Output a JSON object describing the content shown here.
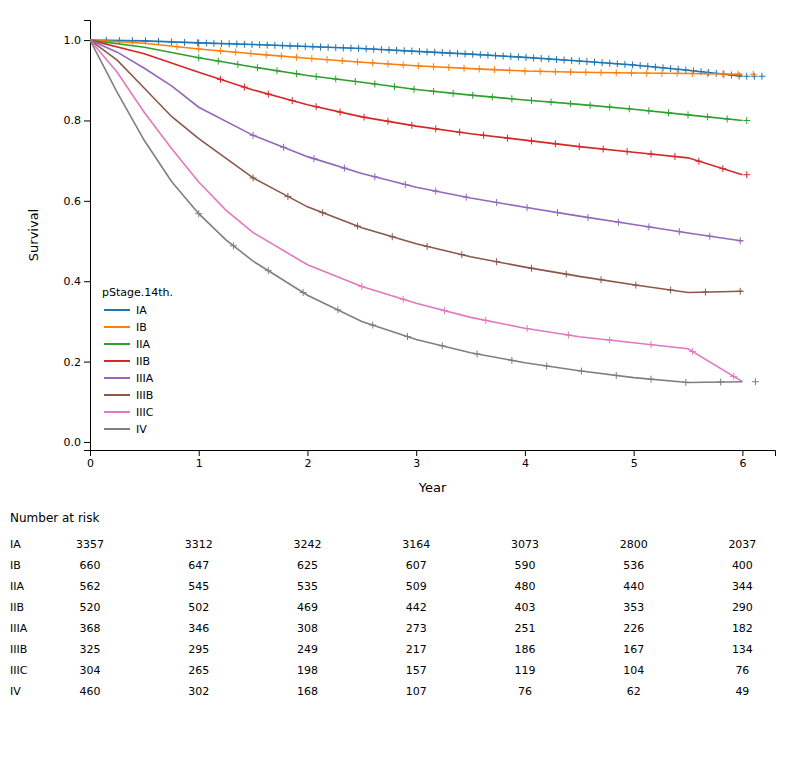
{
  "chart_data": {
    "type": "line",
    "xlabel": "Year",
    "ylabel": "Survival",
    "xlim": [
      0,
      6.3
    ],
    "ylim": [
      -0.02,
      1.05
    ],
    "xticks": [
      0,
      1,
      2,
      3,
      4,
      5,
      6
    ],
    "yticks": [
      {
        "value": 0.0,
        "label": "0.0"
      },
      {
        "value": 0.2,
        "label": "0.2"
      },
      {
        "value": 0.4,
        "label": "0.4"
      },
      {
        "value": 0.6,
        "label": "0.6"
      },
      {
        "value": 0.8,
        "label": "0.8"
      },
      {
        "value": 1.0,
        "label": "1.0"
      }
    ],
    "legend": "lower left",
    "legend_title": "pStage.14th.",
    "series": [
      {
        "name": "IA",
        "marker": "plus",
        "x": [
          0,
          0.5,
          1,
          1.5,
          2,
          2.5,
          3,
          3.5,
          4,
          4.5,
          5,
          5.5,
          6
        ],
        "values": [
          1.0,
          0.998,
          0.993,
          0.989,
          0.984,
          0.979,
          0.972,
          0.965,
          0.957,
          0.948,
          0.938,
          0.925,
          0.91
        ],
        "censored": {
          "x": [
            0.15,
            0.27,
            0.39,
            0.51,
            0.63,
            0.75,
            0.87,
            0.99,
            1.0,
            1.07,
            1.14,
            1.21,
            1.28,
            1.35,
            1.42,
            1.49,
            1.56,
            1.63,
            1.7,
            1.77,
            1.84,
            1.91,
            1.98,
            2.05,
            2.12,
            2.19,
            2.26,
            2.33,
            2.4,
            2.47,
            2.54,
            2.61,
            2.68,
            2.75,
            2.82,
            2.89,
            2.96,
            3.03,
            3.1,
            3.17,
            3.24,
            3.31,
            3.38,
            3.45,
            3.52,
            3.59,
            3.66,
            3.73,
            3.8,
            3.87,
            3.94,
            4.01,
            4.08,
            4.15,
            4.22,
            4.29,
            4.36,
            4.43,
            4.5,
            4.57,
            4.64,
            4.71,
            4.78,
            4.85,
            4.92,
            4.99,
            5.06,
            5.13,
            5.2,
            5.27,
            5.34,
            5.41,
            5.48,
            5.55,
            5.62,
            5.69,
            5.76,
            5.83,
            5.9,
            5.97,
            6.04,
            6.11,
            6.18
          ],
          "values": [
            0.9994,
            0.99892,
            0.99844,
            0.9979,
            0.9967,
            0.9955,
            0.9943,
            0.9931,
            0.993,
            0.99244,
            0.99188,
            0.99132,
            0.99076,
            0.9902,
            0.98964,
            0.98908,
            0.9884,
            0.9877,
            0.987,
            0.9863,
            0.9856,
            0.9849,
            0.9842,
            0.9835,
            0.9828,
            0.9821,
            0.9814,
            0.9807,
            0.98,
            0.9793,
            0.97844,
            0.97746,
            0.97648,
            0.9755,
            0.97452,
            0.97354,
            0.97256,
            0.97158,
            0.9706,
            0.96962,
            0.96864,
            0.96766,
            0.96668,
            0.9657,
            0.96468,
            0.96356,
            0.96244,
            0.96132,
            0.9602,
            0.95908,
            0.95796,
            0.95682,
            0.95556,
            0.9543,
            0.95304,
            0.95178,
            0.95052,
            0.94926,
            0.948,
            0.9466,
            0.9452,
            0.9438,
            0.9424,
            0.941,
            0.9396,
            0.9382,
            0.93644,
            0.93462,
            0.9328,
            0.93098,
            0.92916,
            0.92734,
            0.92552,
            0.9235,
            0.9214,
            0.9193,
            0.9172,
            0.9151,
            0.913,
            0.9109,
            0.91,
            0.91,
            0.91
          ]
        }
      },
      {
        "name": "IB",
        "marker": "plus",
        "x": [
          0,
          0.5,
          1,
          1.5,
          2,
          2.5,
          3,
          3.5,
          4,
          4.5,
          5,
          5.5,
          6
        ],
        "values": [
          1.0,
          0.992,
          0.978,
          0.966,
          0.955,
          0.945,
          0.936,
          0.929,
          0.923,
          0.92,
          0.918,
          0.917,
          0.915
        ],
        "censored": {
          "x": [
            0.8,
            1.0,
            1.2,
            1.34,
            1.48,
            1.62,
            1.76,
            1.9,
            2.04,
            2.18,
            2.32,
            2.46,
            2.6,
            2.74,
            2.88,
            3.02,
            3.16,
            3.3,
            3.44,
            3.58,
            3.72,
            3.86,
            4.0,
            4.14,
            4.28,
            4.42,
            4.56,
            4.7,
            4.84,
            4.98,
            5.12,
            5.26,
            5.4,
            5.54,
            5.68,
            5.82,
            5.96,
            6.1
          ],
          "values": [
            0.9836,
            0.978,
            0.9732,
            0.96984,
            0.96648,
            0.96336,
            0.96028,
            0.9572,
            0.9542,
            0.9514,
            0.9486,
            0.9458,
            0.9432,
            0.94068,
            0.93816,
            0.93572,
            0.93376,
            0.9318,
            0.92984,
            0.92804,
            0.92636,
            0.92468,
            0.923,
            0.92216,
            0.92132,
            0.92048,
            0.91976,
            0.9192,
            0.91864,
            0.91808,
            0.91776,
            0.91748,
            0.9172,
            0.91684,
            0.91628,
            0.91572,
            0.91516,
            0.915
          ]
        }
      },
      {
        "name": "IIA",
        "marker": "plus",
        "x": [
          0,
          0.5,
          1,
          1.5,
          2,
          2.5,
          3,
          3.5,
          4,
          4.5,
          5,
          5.5,
          6
        ],
        "values": [
          1.0,
          0.982,
          0.956,
          0.933,
          0.912,
          0.895,
          0.877,
          0.863,
          0.851,
          0.84,
          0.828,
          0.814,
          0.8
        ],
        "censored": {
          "x": [
            1.0,
            1.18,
            1.36,
            1.54,
            1.72,
            1.9,
            2.08,
            2.26,
            2.44,
            2.62,
            2.8,
            2.98,
            3.16,
            3.34,
            3.52,
            3.7,
            3.88,
            4.06,
            4.24,
            4.42,
            4.6,
            4.78,
            4.96,
            5.14,
            5.32,
            5.5,
            5.68,
            5.86,
            6.04
          ],
          "values": [
            0.956,
            0.94772,
            0.93944,
            0.93132,
            0.92376,
            0.9162,
            0.90928,
            0.90316,
            0.89704,
            0.89068,
            0.8842,
            0.87772,
            0.87252,
            0.86748,
            0.86252,
            0.8582,
            0.85388,
            0.84968,
            0.84572,
            0.84176,
            0.8376,
            0.83328,
            0.82896,
            0.82408,
            0.81904,
            0.814,
            0.80896,
            0.80392,
            0.8
          ]
        }
      },
      {
        "name": "IIB",
        "marker": "plus",
        "x": [
          0,
          0.5,
          1,
          1.5,
          2,
          2.5,
          3,
          3.5,
          4,
          4.5,
          5,
          5.5,
          6
        ],
        "values": [
          1.0,
          0.966,
          0.92,
          0.876,
          0.839,
          0.809,
          0.786,
          0.767,
          0.751,
          0.735,
          0.721,
          0.707,
          0.665
        ],
        "censored": {
          "x": [
            1.2,
            1.42,
            1.64,
            1.86,
            2.08,
            2.3,
            2.52,
            2.74,
            2.96,
            3.18,
            3.4,
            3.62,
            3.84,
            4.06,
            4.28,
            4.5,
            4.72,
            4.94,
            5.16,
            5.38,
            5.6,
            5.82,
            6.04
          ],
          "values": [
            0.9024,
            0.88304,
            0.86564,
            0.84936,
            0.8342,
            0.821,
            0.80808,
            0.79796,
            0.78784,
            0.77916,
            0.7708,
            0.76316,
            0.75612,
            0.74908,
            0.74204,
            0.735,
            0.72884,
            0.72268,
            0.71652,
            0.71036,
            0.6986,
            0.68012,
            0.665
          ]
        }
      },
      {
        "name": "IIIA",
        "marker": "plus",
        "x": [
          0,
          0.25,
          0.5,
          0.75,
          1,
          1.5,
          2,
          2.5,
          3,
          3.5,
          4,
          4.5,
          5,
          5.5,
          6
        ],
        "values": [
          1.0,
          0.97,
          0.93,
          0.886,
          0.833,
          0.763,
          0.71,
          0.668,
          0.634,
          0.607,
          0.584,
          0.562,
          0.541,
          0.52,
          0.5
        ],
        "censored": {
          "x": [
            1.5,
            1.78,
            2.06,
            2.34,
            2.62,
            2.9,
            3.18,
            3.46,
            3.74,
            4.02,
            4.3,
            4.58,
            4.86,
            5.14,
            5.42,
            5.7,
            5.98
          ],
          "values": [
            0.763,
            0.73332,
            0.70496,
            0.68144,
            0.65984,
            0.6408,
            0.62428,
            0.60916,
            0.59596,
            0.58312,
            0.5708,
            0.55864,
            0.54688,
            0.53512,
            0.52336,
            0.512,
            0.5008
          ]
        }
      },
      {
        "name": "IIIB",
        "marker": "plus",
        "x": [
          0,
          0.25,
          0.5,
          0.75,
          1,
          1.5,
          2,
          2.5,
          3,
          3.5,
          4,
          4.5,
          5,
          5.5,
          6
        ],
        "values": [
          1.0,
          0.95,
          0.88,
          0.81,
          0.755,
          0.657,
          0.585,
          0.533,
          0.493,
          0.461,
          0.435,
          0.412,
          0.391,
          0.372,
          0.375
        ],
        "censored": {
          "x": [
            1.5,
            1.82,
            2.14,
            2.46,
            2.78,
            3.1,
            3.42,
            3.74,
            4.06,
            4.38,
            4.7,
            5.02,
            5.34,
            5.66,
            5.98
          ],
          "values": [
            0.657,
            0.61092,
            0.57044,
            0.53716,
            0.5106,
            0.4866,
            0.46612,
            0.44852,
            0.43224,
            0.41752,
            0.4036,
            0.39024,
            0.37808,
            0.37296,
            0.37488
          ]
        }
      },
      {
        "name": "IIIC",
        "marker": "plus",
        "x": [
          0,
          0.25,
          0.5,
          0.75,
          1,
          1.25,
          1.5,
          2,
          2.5,
          3,
          3.5,
          4,
          4.5,
          5,
          5.5,
          6
        ],
        "values": [
          1.0,
          0.92,
          0.82,
          0.73,
          0.647,
          0.577,
          0.521,
          0.441,
          0.387,
          0.345,
          0.31,
          0.283,
          0.262,
          0.247,
          0.232,
          0.15
        ],
        "censored": {
          "x": [
            2.5,
            2.88,
            3.26,
            3.64,
            4.02,
            4.4,
            4.78,
            5.16,
            5.54,
            5.92
          ],
          "values": [
            0.387,
            0.35508,
            0.3268,
            0.30244,
            0.28216,
            0.2662,
            0.2536,
            0.2422,
            0.22544,
            0.16312
          ]
        }
      },
      {
        "name": "IV",
        "marker": "plus",
        "x": [
          0,
          0.25,
          0.5,
          0.75,
          1,
          1.25,
          1.5,
          2,
          2.5,
          3,
          3.5,
          4,
          4.5,
          5,
          5.5,
          6
        ],
        "values": [
          1.0,
          0.87,
          0.75,
          0.648,
          0.568,
          0.503,
          0.45,
          0.365,
          0.3,
          0.255,
          0.222,
          0.197,
          0.177,
          0.16,
          0.148,
          0.15
        ],
        "censored": {
          "x": [
            1.0,
            1.32,
            1.64,
            1.96,
            2.28,
            2.6,
            2.92,
            3.24,
            3.56,
            3.88,
            4.2,
            4.52,
            4.84,
            5.16,
            5.48,
            5.8,
            6.12
          ],
          "values": [
            0.568,
            0.48816,
            0.4262,
            0.3718,
            0.3286,
            0.291,
            0.2622,
            0.23916,
            0.219,
            0.203,
            0.189,
            0.17632,
            0.16544,
            0.15616,
            0.14848,
            0.1492,
            0.15
          ]
        }
      }
    ],
    "number_at_risk": {
      "title": "Number at risk",
      "times": [
        0,
        1,
        2,
        3,
        4,
        5,
        6
      ],
      "rows": [
        {
          "name": "IA",
          "values": [
            3357,
            3312,
            3242,
            3164,
            3073,
            2800,
            2037
          ]
        },
        {
          "name": "IB",
          "values": [
            660,
            647,
            625,
            607,
            590,
            536,
            400
          ]
        },
        {
          "name": "IIA",
          "values": [
            562,
            545,
            535,
            509,
            480,
            440,
            344
          ]
        },
        {
          "name": "IIB",
          "values": [
            520,
            502,
            469,
            442,
            403,
            353,
            290
          ]
        },
        {
          "name": "IIIA",
          "values": [
            368,
            346,
            308,
            273,
            251,
            226,
            182
          ]
        },
        {
          "name": "IIIB",
          "values": [
            325,
            295,
            249,
            217,
            186,
            167,
            134
          ]
        },
        {
          "name": "IIIC",
          "values": [
            304,
            265,
            198,
            157,
            119,
            104,
            76
          ]
        },
        {
          "name": "IV",
          "values": [
            460,
            302,
            168,
            107,
            76,
            62,
            49
          ]
        }
      ]
    }
  }
}
